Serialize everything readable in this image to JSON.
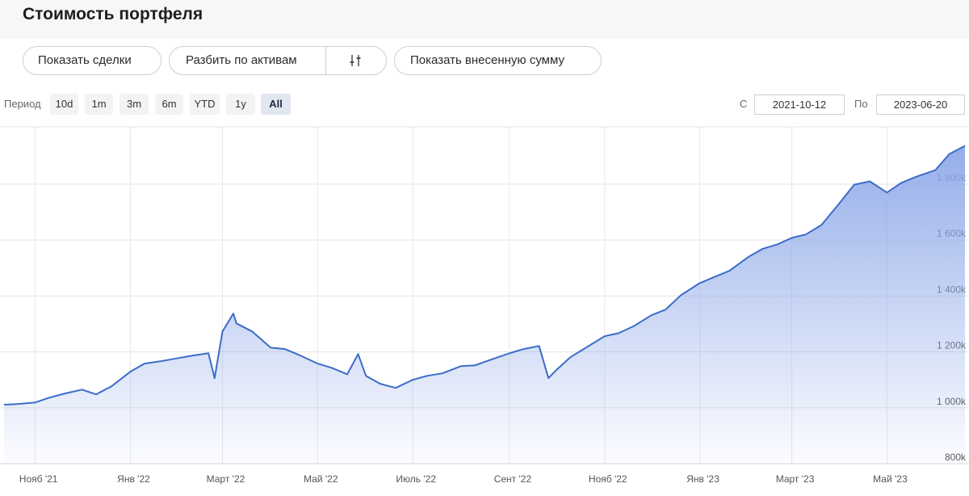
{
  "header": {
    "title": "Стоимость портфеля"
  },
  "toolbar": {
    "show_trades": "Показать сделки",
    "split_by_assets": "Разбить по активам",
    "show_deposited": "Показать внесенную сумму"
  },
  "period": {
    "label": "Период",
    "options": [
      "10d",
      "1m",
      "3m",
      "6m",
      "YTD",
      "1y",
      "All"
    ],
    "active": 6,
    "from_label": "С",
    "to_label": "По"
  },
  "chart_data": {
    "type": "area",
    "color": "#3b6cc9",
    "fill_color": "#8fa9e8",
    "grid": true,
    "x": [
      "2021-10-12",
      "2021-10-20",
      "2021-11-01",
      "2021-11-10",
      "2021-11-20",
      "2021-12-01",
      "2021-12-10",
      "2021-12-20",
      "2022-01-01",
      "2022-01-10",
      "2022-01-20",
      "2022-02-01",
      "2022-02-10",
      "2022-02-20",
      "2022-02-24",
      "2022-03-01",
      "2022-03-08",
      "2022-03-10",
      "2022-03-20",
      "2022-04-01",
      "2022-04-10",
      "2022-04-20",
      "2022-05-01",
      "2022-05-10",
      "2022-05-20",
      "2022-05-27",
      "2022-06-01",
      "2022-06-10",
      "2022-06-20",
      "2022-07-01",
      "2022-07-10",
      "2022-07-20",
      "2022-08-01",
      "2022-08-10",
      "2022-08-20",
      "2022-09-01",
      "2022-09-10",
      "2022-09-20",
      "2022-09-26",
      "2022-10-01",
      "2022-10-10",
      "2022-10-20",
      "2022-11-01",
      "2022-11-10",
      "2022-11-20",
      "2022-12-01",
      "2022-12-10",
      "2022-12-20",
      "2023-01-01",
      "2023-01-10",
      "2023-01-20",
      "2023-02-01",
      "2023-02-10",
      "2023-02-20",
      "2023-03-01",
      "2023-03-10",
      "2023-03-20",
      "2023-04-01",
      "2023-04-10",
      "2023-04-20",
      "2023-05-01",
      "2023-05-10",
      "2023-05-20",
      "2023-06-01",
      "2023-06-10",
      "2023-06-20"
    ],
    "values": [
      1011000,
      1013000,
      1019000,
      1036000,
      1051000,
      1065000,
      1048000,
      1077000,
      1129000,
      1158000,
      1166000,
      1178000,
      1187000,
      1195000,
      1106000,
      1273000,
      1337000,
      1302000,
      1273000,
      1215000,
      1210000,
      1187000,
      1158000,
      1143000,
      1120000,
      1192000,
      1114000,
      1086000,
      1071000,
      1100000,
      1114000,
      1123000,
      1149000,
      1152000,
      1172000,
      1195000,
      1210000,
      1221000,
      1106000,
      1135000,
      1181000,
      1215000,
      1256000,
      1267000,
      1293000,
      1331000,
      1351000,
      1403000,
      1446000,
      1467000,
      1490000,
      1539000,
      1568000,
      1585000,
      1608000,
      1620000,
      1654000,
      1735000,
      1798000,
      1810000,
      1770000,
      1804000,
      1827000,
      1850000,
      1908000,
      1937000
    ],
    "xlim": [
      "2021-10-12",
      "2023-06-20"
    ],
    "xticks": [
      {
        "value": "2021-11-01",
        "label": "Нояб '21"
      },
      {
        "value": "2022-01-01",
        "label": "Янв '22"
      },
      {
        "value": "2022-03-01",
        "label": "Март '22"
      },
      {
        "value": "2022-05-01",
        "label": "Май '22"
      },
      {
        "value": "2022-07-01",
        "label": "Июль '22"
      },
      {
        "value": "2022-09-01",
        "label": "Сент '22"
      },
      {
        "value": "2022-11-01",
        "label": "Нояб '22"
      },
      {
        "value": "2023-01-01",
        "label": "Янв '23"
      },
      {
        "value": "2023-03-01",
        "label": "Март '23"
      },
      {
        "value": "2023-05-01",
        "label": "Май '23"
      }
    ],
    "ylim": [
      800000,
      2005000
    ],
    "yticks": [
      {
        "value": 800000,
        "label": "800k"
      },
      {
        "value": 1000000,
        "label": "1 000k"
      },
      {
        "value": 1200000,
        "label": "1 200k"
      },
      {
        "value": 1400000,
        "label": "1 400k"
      },
      {
        "value": 1600000,
        "label": "1 600k"
      },
      {
        "value": 1800000,
        "label": "1 800k"
      }
    ]
  }
}
